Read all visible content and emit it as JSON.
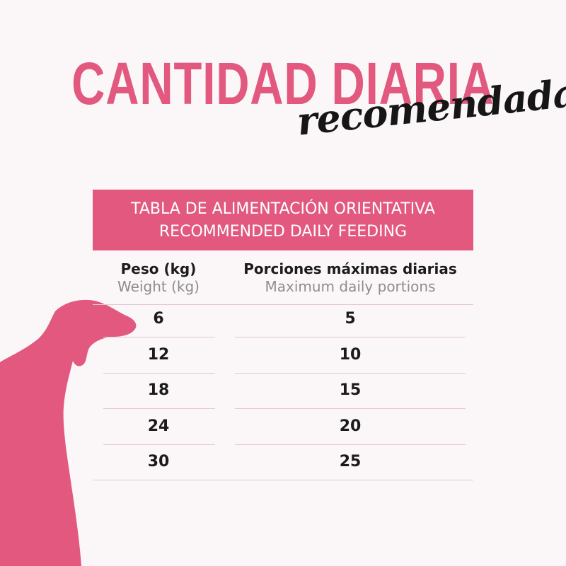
{
  "header": {
    "title": "CANTIDAD DIARIA",
    "subtitle": "recomendada"
  },
  "table": {
    "banner_line1": "TABLA DE ALIMENTACIÓN ORIENTATIVA",
    "banner_line2": "RECOMMENDED DAILY FEEDING",
    "col_weight_es": "Peso (kg)",
    "col_weight_en": "Weight (kg)",
    "col_portions_es": "Porciones máximas diarias",
    "col_portions_en": "Maximum daily portions",
    "rows": [
      {
        "weight": "6",
        "portions": "5"
      },
      {
        "weight": "12",
        "portions": "10"
      },
      {
        "weight": "18",
        "portions": "15"
      },
      {
        "weight": "24",
        "portions": "20"
      },
      {
        "weight": "30",
        "portions": "25"
      }
    ]
  },
  "colors": {
    "accent": "#e2587f",
    "background": "#fbf7f8",
    "text": "#1b1b1b",
    "secondary_text": "#8d8d8d"
  },
  "icons": {
    "decoration": "dog-silhouette-icon"
  }
}
